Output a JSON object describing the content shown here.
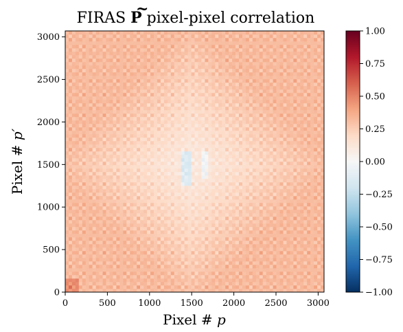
{
  "chart_data": {
    "type": "heatmap",
    "title": {
      "prefix": "FIRAS ",
      "symbol": "P",
      "symbol_accent": "~",
      "suffix": " pixel-pixel correlation"
    },
    "xlabel": {
      "text": "Pixel # ",
      "var": "p"
    },
    "ylabel": {
      "text": "Pixel # ",
      "var": "p′"
    },
    "xlim": [
      0,
      3070
    ],
    "ylim": [
      0,
      3070
    ],
    "xticks": [
      0,
      500,
      1000,
      1500,
      2000,
      2500,
      3000
    ],
    "yticks": [
      0,
      500,
      1000,
      1500,
      2000,
      2500,
      3000
    ],
    "colorbar": {
      "range": [
        -1.0,
        1.0
      ],
      "ticks": [
        1.0,
        0.75,
        0.5,
        0.25,
        0.0,
        -0.25,
        -0.5,
        -0.75,
        -1.0
      ],
      "tick_labels": [
        "1.00",
        "0.75",
        "0.50",
        "0.25",
        "0.00",
        "−0.25",
        "−0.50",
        "−0.75",
        "−1.00"
      ],
      "colormap": "RdBu_r",
      "stops": [
        "#053061",
        "#2166ac",
        "#4393c3",
        "#92c5de",
        "#d1e5f0",
        "#f7f7f7",
        "#fddbc7",
        "#f4a582",
        "#d6604d",
        "#b2182b",
        "#67001f"
      ]
    },
    "pattern": {
      "description_values": "mostly positive correlations 0.1–0.5, weaker near pixel 1500, grid-like periodic structure",
      "background_value": 0.35,
      "center": 1500,
      "period": 62
    }
  }
}
